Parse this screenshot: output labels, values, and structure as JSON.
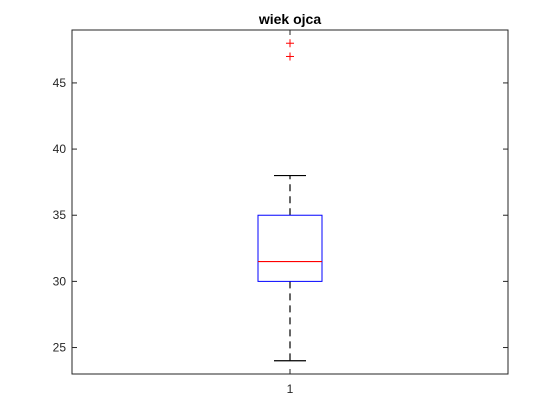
{
  "chart_data": {
    "type": "boxplot",
    "title": "wiek ojca",
    "xlabel": "",
    "ylabel": "",
    "categories": [
      "1"
    ],
    "ylim": [
      23,
      49
    ],
    "yticks": [
      25,
      30,
      35,
      40,
      45
    ],
    "ytick_labels": [
      "25",
      "30",
      "35",
      "40",
      "45"
    ],
    "boxes": [
      {
        "category": "1",
        "whisker_low": 24,
        "q1": 30,
        "median": 31.5,
        "q3": 35,
        "whisker_high": 38,
        "outliers": [
          47,
          48
        ]
      }
    ],
    "grid": false,
    "colors": {
      "box": "#0000ff",
      "median": "#ff0000",
      "whisker": "#000000",
      "outlier": "#ff0000",
      "axes": "#262626"
    }
  }
}
